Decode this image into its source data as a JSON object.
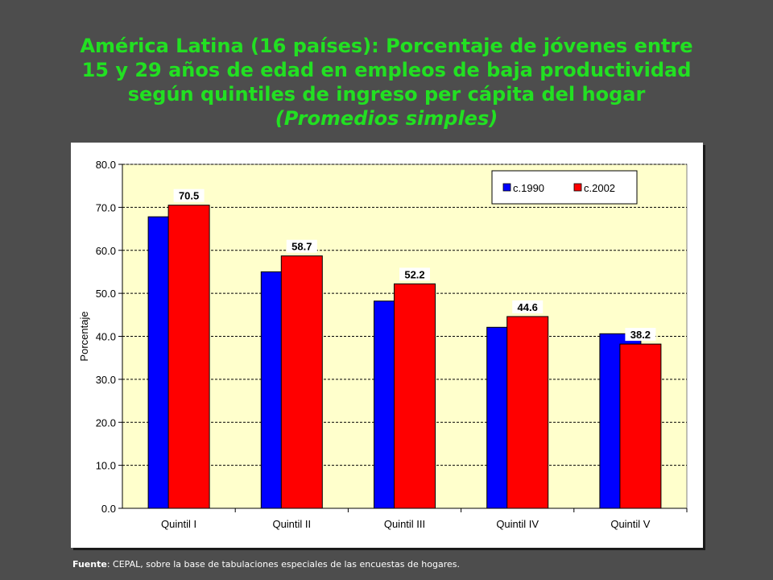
{
  "title": {
    "line1": "América Latina (16 países): Porcentaje de jóvenes entre",
    "line2": "15 y 29 años de edad en empleos de baja productividad",
    "line3": "según quintiles de ingreso per cápita del hogar",
    "subtitle": "(Promedios simples)"
  },
  "footer": {
    "label": "Fuente",
    "text": ": CEPAL, sobre la base de tabulaciones especiales de las encuestas de hogares."
  },
  "chart_data": {
    "type": "bar",
    "title": "América Latina (16 países): Porcentaje de jóvenes entre 15 y 29 años de edad en empleos de baja productividad según quintiles de ingreso per cápita del hogar",
    "subtitle": "(Promedios simples)",
    "xlabel": "",
    "ylabel": "Porcentaje",
    "ylim": [
      0,
      80
    ],
    "yticks": [
      "0.0",
      "10.0",
      "20.0",
      "30.0",
      "40.0",
      "50.0",
      "60.0",
      "70.0",
      "80.0"
    ],
    "grid": true,
    "legend_position": "top-right",
    "categories": [
      "Quintil I",
      "Quintil II",
      "Quintil III",
      "Quintil IV",
      "Quintil V"
    ],
    "series": [
      {
        "name": "c.1990",
        "color": "#0000ff",
        "values": [
          67.8,
          55.0,
          48.2,
          42.1,
          40.6
        ]
      },
      {
        "name": "c.2002",
        "color": "#ff0000",
        "values": [
          70.5,
          58.7,
          52.2,
          44.6,
          38.2
        ],
        "labels": [
          "70.5",
          "58.7",
          "52.2",
          "44.6",
          "38.2"
        ]
      }
    ],
    "plot_background": "#ffffcc"
  }
}
